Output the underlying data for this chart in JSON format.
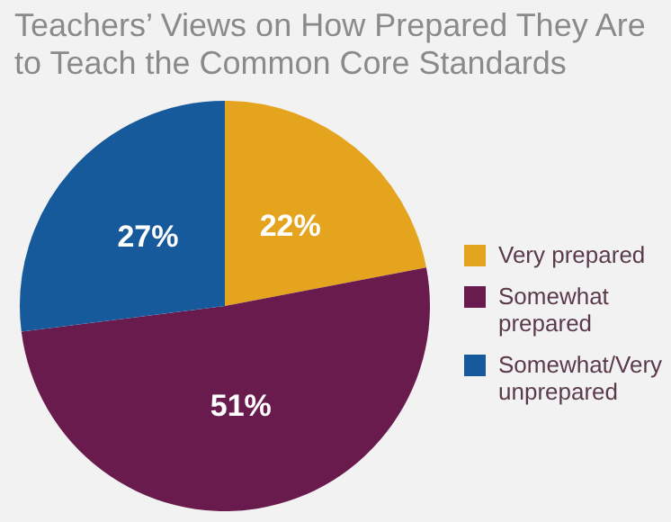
{
  "chart_data": {
    "type": "pie",
    "title": "Teachers’ Views on How Prepared They Are to Teach the Common Core Standards",
    "categories": [
      "Very prepared",
      "Somewhat prepared",
      "Somewhat/Very unprepared"
    ],
    "values": [
      22,
      51,
      27
    ],
    "value_labels": [
      "22%",
      "51%",
      "27%"
    ],
    "colors": [
      "#e5a41e",
      "#6a1b4d",
      "#175a9c"
    ],
    "legend": "right"
  }
}
